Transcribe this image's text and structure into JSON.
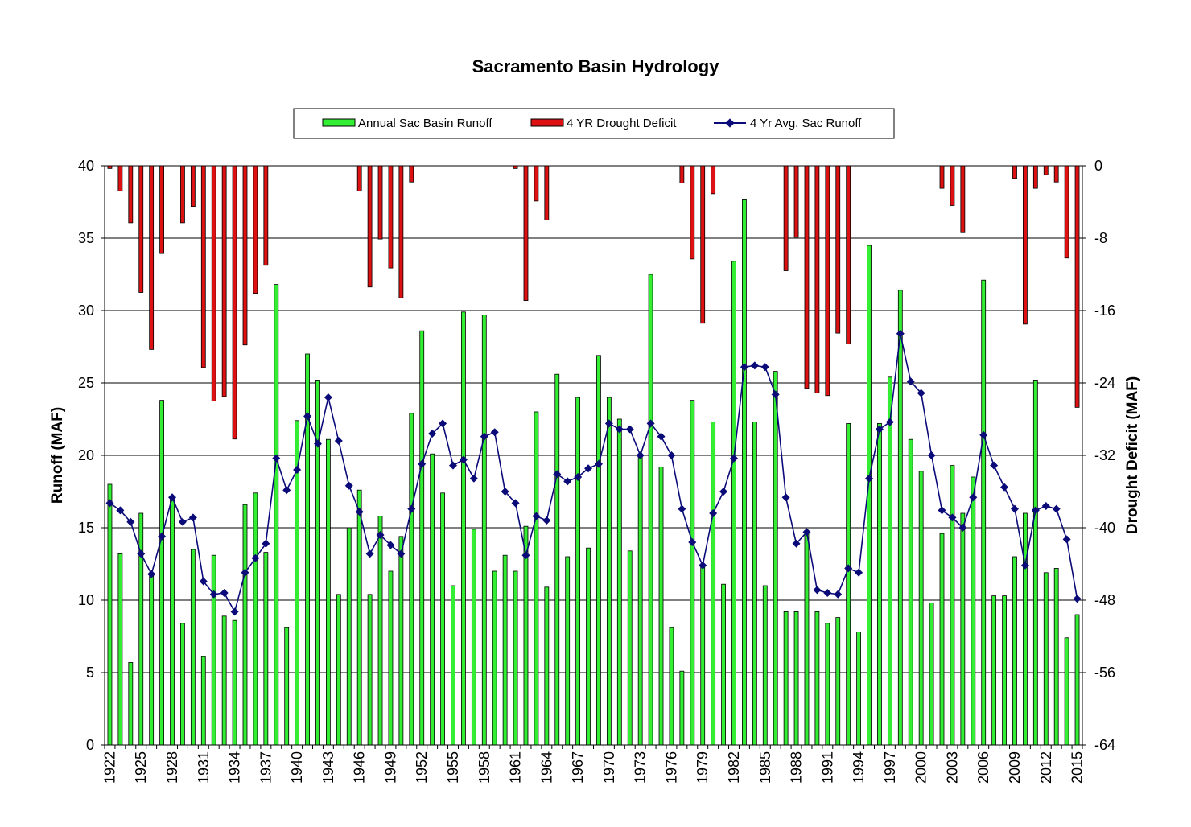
{
  "chart_data": {
    "type": "bar",
    "title": "Sacramento Basin Hydrology",
    "ylabel": "Runoff (MAF)",
    "y2label": "Drought Deficit (MAF)",
    "ylim": [
      0,
      40
    ],
    "y2lim": [
      -64,
      0
    ],
    "yticks": [
      0,
      5,
      10,
      15,
      20,
      25,
      30,
      35,
      40
    ],
    "y2ticks": [
      0,
      -8,
      -16,
      -24,
      -32,
      -40,
      -48,
      -56,
      -64
    ],
    "xlabel": "",
    "x_tick_labels": [
      "1922",
      "1925",
      "1928",
      "1931",
      "1934",
      "1937",
      "1940",
      "1943",
      "1946",
      "1949",
      "1952",
      "1955",
      "1958",
      "1961",
      "1964",
      "1967",
      "1970",
      "1973",
      "1976",
      "1979",
      "1982",
      "1985",
      "1988",
      "1991",
      "1994",
      "1997",
      "2000",
      "2003",
      "2006",
      "2009",
      "2012",
      "2015"
    ],
    "categories": [
      1922,
      1923,
      1924,
      1925,
      1926,
      1927,
      1928,
      1929,
      1930,
      1931,
      1932,
      1933,
      1934,
      1935,
      1936,
      1937,
      1938,
      1939,
      1940,
      1941,
      1942,
      1943,
      1944,
      1945,
      1946,
      1947,
      1948,
      1949,
      1950,
      1951,
      1952,
      1953,
      1954,
      1955,
      1956,
      1957,
      1958,
      1959,
      1960,
      1961,
      1962,
      1963,
      1964,
      1965,
      1966,
      1967,
      1968,
      1969,
      1970,
      1971,
      1972,
      1973,
      1974,
      1975,
      1976,
      1977,
      1978,
      1979,
      1980,
      1981,
      1982,
      1983,
      1984,
      1985,
      1986,
      1987,
      1988,
      1989,
      1990,
      1991,
      1992,
      1993,
      1994,
      1995,
      1996,
      1997,
      1998,
      1999,
      2000,
      2001,
      2002,
      2003,
      2004,
      2005,
      2006,
      2007,
      2008,
      2009,
      2010,
      2011,
      2012,
      2013,
      2014,
      2015
    ],
    "legend": [
      "Annual Sac Basin Runoff",
      "4 YR Drought Deficit",
      "4 Yr Avg. Sac Runoff"
    ],
    "legend_position": "top-center",
    "grid": true,
    "colors": {
      "runoff": "#33ee33",
      "deficit": "#dd1111",
      "avg": "#0a0a78"
    },
    "series": [
      {
        "name": "Annual Sac Basin Runoff",
        "axis": "left",
        "type": "bar",
        "values": [
          18.0,
          13.2,
          5.7,
          16.0,
          11.8,
          23.8,
          17.0,
          8.4,
          13.5,
          6.1,
          13.1,
          8.9,
          8.6,
          16.6,
          17.4,
          13.3,
          31.8,
          8.1,
          22.4,
          27.0,
          25.2,
          21.1,
          10.4,
          15.0,
          17.6,
          10.4,
          15.8,
          12.0,
          14.4,
          22.9,
          28.6,
          20.1,
          17.4,
          11.0,
          29.9,
          14.9,
          29.7,
          12.0,
          13.1,
          12.0,
          15.1,
          23.0,
          10.9,
          25.6,
          13.0,
          24.0,
          13.6,
          26.9,
          24.0,
          22.5,
          13.4,
          20.1,
          32.5,
          19.2,
          8.1,
          5.1,
          23.8,
          12.4,
          22.3,
          11.1,
          33.4,
          37.7,
          22.3,
          11.0,
          25.8,
          9.2,
          9.2,
          14.8,
          9.2,
          8.4,
          8.8,
          22.2,
          7.8,
          34.5,
          22.2,
          25.4,
          31.4,
          21.1,
          18.9,
          9.8,
          14.6,
          19.3,
          16.0,
          18.5,
          32.1,
          10.3,
          10.3,
          13.0,
          16.0,
          25.2,
          11.9,
          12.2,
          7.4,
          9.0
        ]
      },
      {
        "name": "4 YR Drought Deficit",
        "axis": "right",
        "type": "bar",
        "values": [
          -0.3,
          -2.8,
          -6.3,
          -14.0,
          -20.3,
          -9.7,
          0,
          -6.3,
          -4.5,
          -22.3,
          -26.0,
          -25.5,
          -30.2,
          -19.8,
          -14.1,
          -11.0,
          0,
          0,
          0,
          0,
          0,
          0,
          0,
          0,
          -2.8,
          -13.4,
          -8.1,
          -11.3,
          -14.6,
          -1.8,
          0,
          0,
          0,
          0,
          0,
          0,
          0,
          0,
          0,
          -0.3,
          -14.9,
          -3.9,
          -6.0,
          0,
          0,
          0,
          0,
          0,
          0,
          0,
          0,
          0,
          0,
          0,
          0,
          -1.9,
          -10.3,
          -17.4,
          -3.1,
          0,
          0,
          0,
          0,
          0,
          0,
          -11.6,
          -7.9,
          -24.6,
          -25.1,
          -25.4,
          -18.5,
          -19.7,
          0,
          0,
          0,
          0,
          0,
          0,
          0,
          0,
          -2.5,
          -4.4,
          -7.4,
          0,
          0,
          0,
          0,
          -1.4,
          -17.5,
          -2.5,
          -1.0,
          -1.8,
          -10.2,
          -26.7
        ]
      },
      {
        "name": "4 Yr Avg. Sac Runoff",
        "axis": "left",
        "type": "line",
        "values": [
          16.7,
          16.2,
          15.4,
          13.2,
          11.8,
          14.4,
          17.1,
          15.4,
          15.7,
          11.3,
          10.4,
          10.5,
          9.2,
          11.9,
          12.9,
          13.9,
          19.8,
          17.6,
          19.0,
          22.7,
          20.8,
          24.0,
          21.0,
          17.9,
          16.1,
          13.2,
          14.5,
          13.8,
          13.2,
          16.3,
          19.4,
          21.5,
          22.2,
          19.3,
          19.7,
          18.4,
          21.3,
          21.6,
          17.5,
          16.7,
          13.1,
          15.8,
          15.5,
          18.7,
          18.2,
          18.5,
          19.1,
          19.4,
          22.2,
          21.8,
          21.8,
          20.0,
          22.2,
          21.3,
          20.0,
          16.3,
          14.0,
          12.4,
          16.0,
          17.5,
          19.8,
          26.1,
          26.2,
          26.1,
          24.2,
          17.1,
          13.9,
          14.7,
          10.7,
          10.5,
          10.4,
          12.2,
          11.9,
          18.4,
          21.8,
          22.3,
          28.4,
          25.1,
          24.3,
          20.0,
          16.2,
          15.7,
          15.0,
          17.1,
          21.4,
          19.3,
          17.8,
          16.3,
          12.4,
          16.2,
          16.5,
          16.3,
          14.2,
          10.1
        ]
      }
    ]
  }
}
